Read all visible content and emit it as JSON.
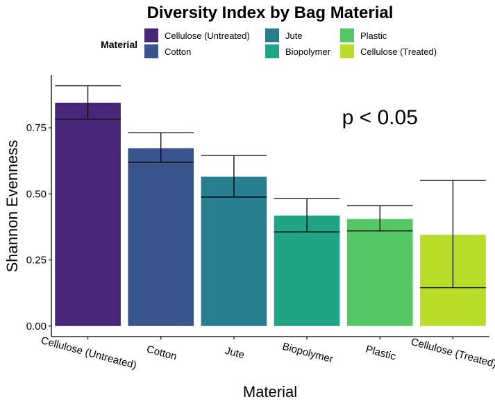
{
  "chart_data": {
    "type": "bar",
    "title": "Diversity Index by Bag Material",
    "xlabel": "Material",
    "ylabel": "Shannon Evenness",
    "legend_title": "Material",
    "legend_position": "top",
    "categories": [
      "Cellulose (Untreated)",
      "Cotton",
      "Jute",
      "Biopolymer",
      "Plastic",
      "Cellulose (Treated)"
    ],
    "values": [
      0.845,
      0.673,
      0.565,
      0.418,
      0.405,
      0.345
    ],
    "error_lower": [
      0.783,
      0.62,
      0.488,
      0.356,
      0.36,
      0.145
    ],
    "error_upper": [
      0.909,
      0.731,
      0.645,
      0.482,
      0.455,
      0.551
    ],
    "colors": [
      "#482677",
      "#3A548C",
      "#287D8E",
      "#20A486",
      "#56C667",
      "#B8DE29"
    ],
    "legend_order": [
      "Cellulose (Untreated)",
      "Cotton",
      "Jute",
      "Biopolymer",
      "Plastic",
      "Cellulose (Treated)"
    ],
    "y_ticks": [
      0.0,
      0.25,
      0.5,
      0.75
    ],
    "y_tick_labels": [
      "0.00",
      "0.25",
      "0.50",
      "0.75"
    ],
    "ylim": [
      -0.04,
      0.95
    ],
    "grid": false,
    "annotation": "p < 0.05",
    "annotation_position": {
      "category_index": 4,
      "y": 0.79
    }
  }
}
